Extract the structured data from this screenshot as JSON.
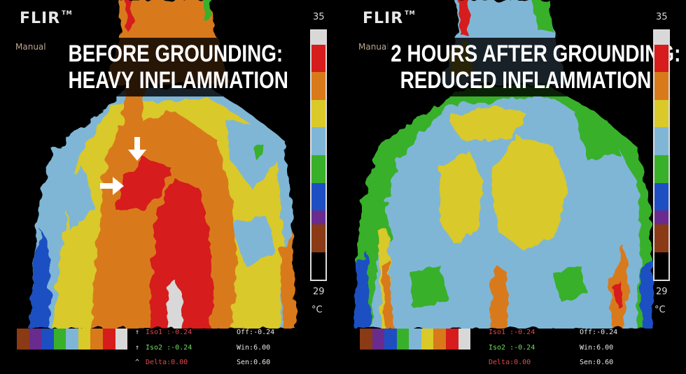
{
  "panels": [
    {
      "brand": "FLIR",
      "mode": "Manual",
      "caption_line1": "BEFORE GROUNDING:",
      "caption_line2": "HEAVY INFLAMMATION",
      "scale_max": "35",
      "scale_min": "29",
      "unit": "°C",
      "iso1": "Iso1 :-0.24",
      "iso2": "Iso2 :-0.24",
      "delta": "Delta:0.00",
      "off": "Off:-0.24",
      "win": "Win:6.00",
      "sen": "Sen:0.60"
    },
    {
      "brand": "FLIR",
      "mode": "Manual",
      "caption_line1": "2 HOURS AFTER GROUNDING:",
      "caption_line2": "REDUCED INFLAMMATION",
      "scale_max": "35",
      "scale_min": "29",
      "unit": "°C",
      "iso1": "Iso1 :-0.24",
      "iso2": "Iso2 :-0.24",
      "delta": "Delta:0.00",
      "off": "Off:-0.24",
      "win": "Win:6.00",
      "sen": "Sen:0.60"
    }
  ],
  "palette": {
    "white": "#d8d8d8",
    "red": "#d61c1c",
    "orange": "#d87a1a",
    "yellow": "#d9c929",
    "lightblue": "#7fb6d6",
    "green": "#38b02a",
    "blue": "#1d4fc2",
    "purple": "#6a2b8e",
    "brown": "#8a3a14",
    "black": "#000000"
  }
}
